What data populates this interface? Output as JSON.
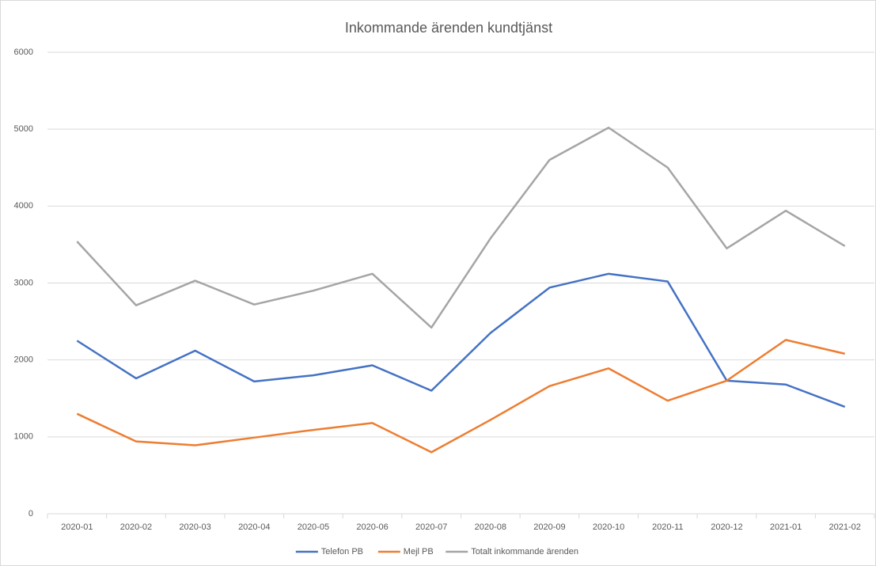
{
  "chart_data": {
    "type": "line",
    "title": "Inkommande ärenden kundtjänst",
    "categories": [
      "2020-01",
      "2020-02",
      "2020-03",
      "2020-04",
      "2020-05",
      "2020-06",
      "2020-07",
      "2020-08",
      "2020-09",
      "2020-10",
      "2020-11",
      "2020-12",
      "2021-01",
      "2021-02"
    ],
    "series": [
      {
        "name": "Telefon PB",
        "color": "#4472c4",
        "values": [
          2250,
          1760,
          2120,
          1720,
          1800,
          1930,
          1600,
          2350,
          2940,
          3120,
          3020,
          1730,
          1680,
          1390
        ]
      },
      {
        "name": "Mejl PB",
        "color": "#ed7d31",
        "values": [
          1300,
          940,
          890,
          990,
          1090,
          1180,
          800,
          1220,
          1660,
          1890,
          1470,
          1730,
          2260,
          2080
        ]
      },
      {
        "name": "Totalt inkommande ärenden",
        "color": "#a5a5a5",
        "values": [
          3540,
          2710,
          3030,
          2720,
          2900,
          3120,
          2420,
          3580,
          4600,
          5020,
          4500,
          3450,
          3940,
          3480
        ]
      }
    ],
    "ylim": [
      0,
      6000
    ],
    "yticks": [
      0,
      1000,
      2000,
      3000,
      4000,
      5000,
      6000
    ],
    "grid": true,
    "legend": "bottom"
  }
}
